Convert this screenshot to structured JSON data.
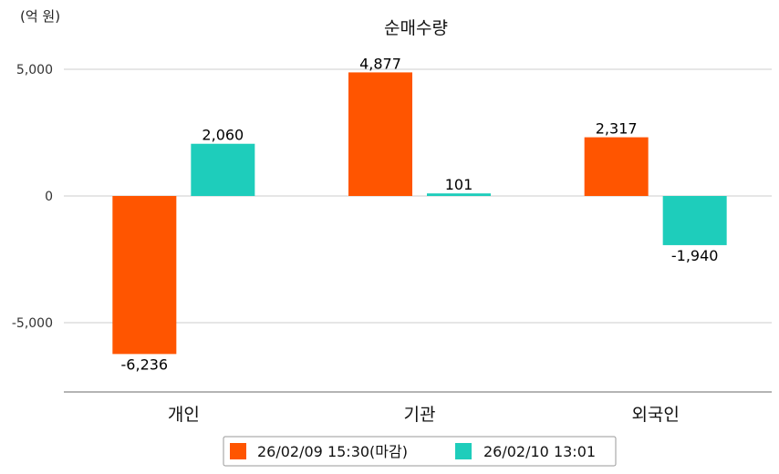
{
  "chart_data": {
    "type": "bar",
    "title": "순매수량",
    "unit_label": "(억 원)",
    "categories": [
      "개인",
      "기관",
      "외국인"
    ],
    "series": [
      {
        "name": "26/02/09 15:30(마감)",
        "color": "#ff5500",
        "values": [
          -6236,
          4877,
          2317
        ],
        "labels": [
          "-6,236",
          "4,877",
          "2,317"
        ]
      },
      {
        "name": "26/02/10 13:01",
        "color": "#1ecdbb",
        "values": [
          2060,
          101,
          -1940
        ],
        "labels": [
          "2,060",
          "101",
          "-1,940"
        ]
      }
    ],
    "y_ticks": [
      5000,
      0,
      -5000
    ],
    "y_tick_labels": [
      "5,000",
      "0",
      "-5,000"
    ],
    "ylim": [
      -7800,
      5000
    ],
    "grid": true,
    "legend_position": "bottom-center"
  }
}
